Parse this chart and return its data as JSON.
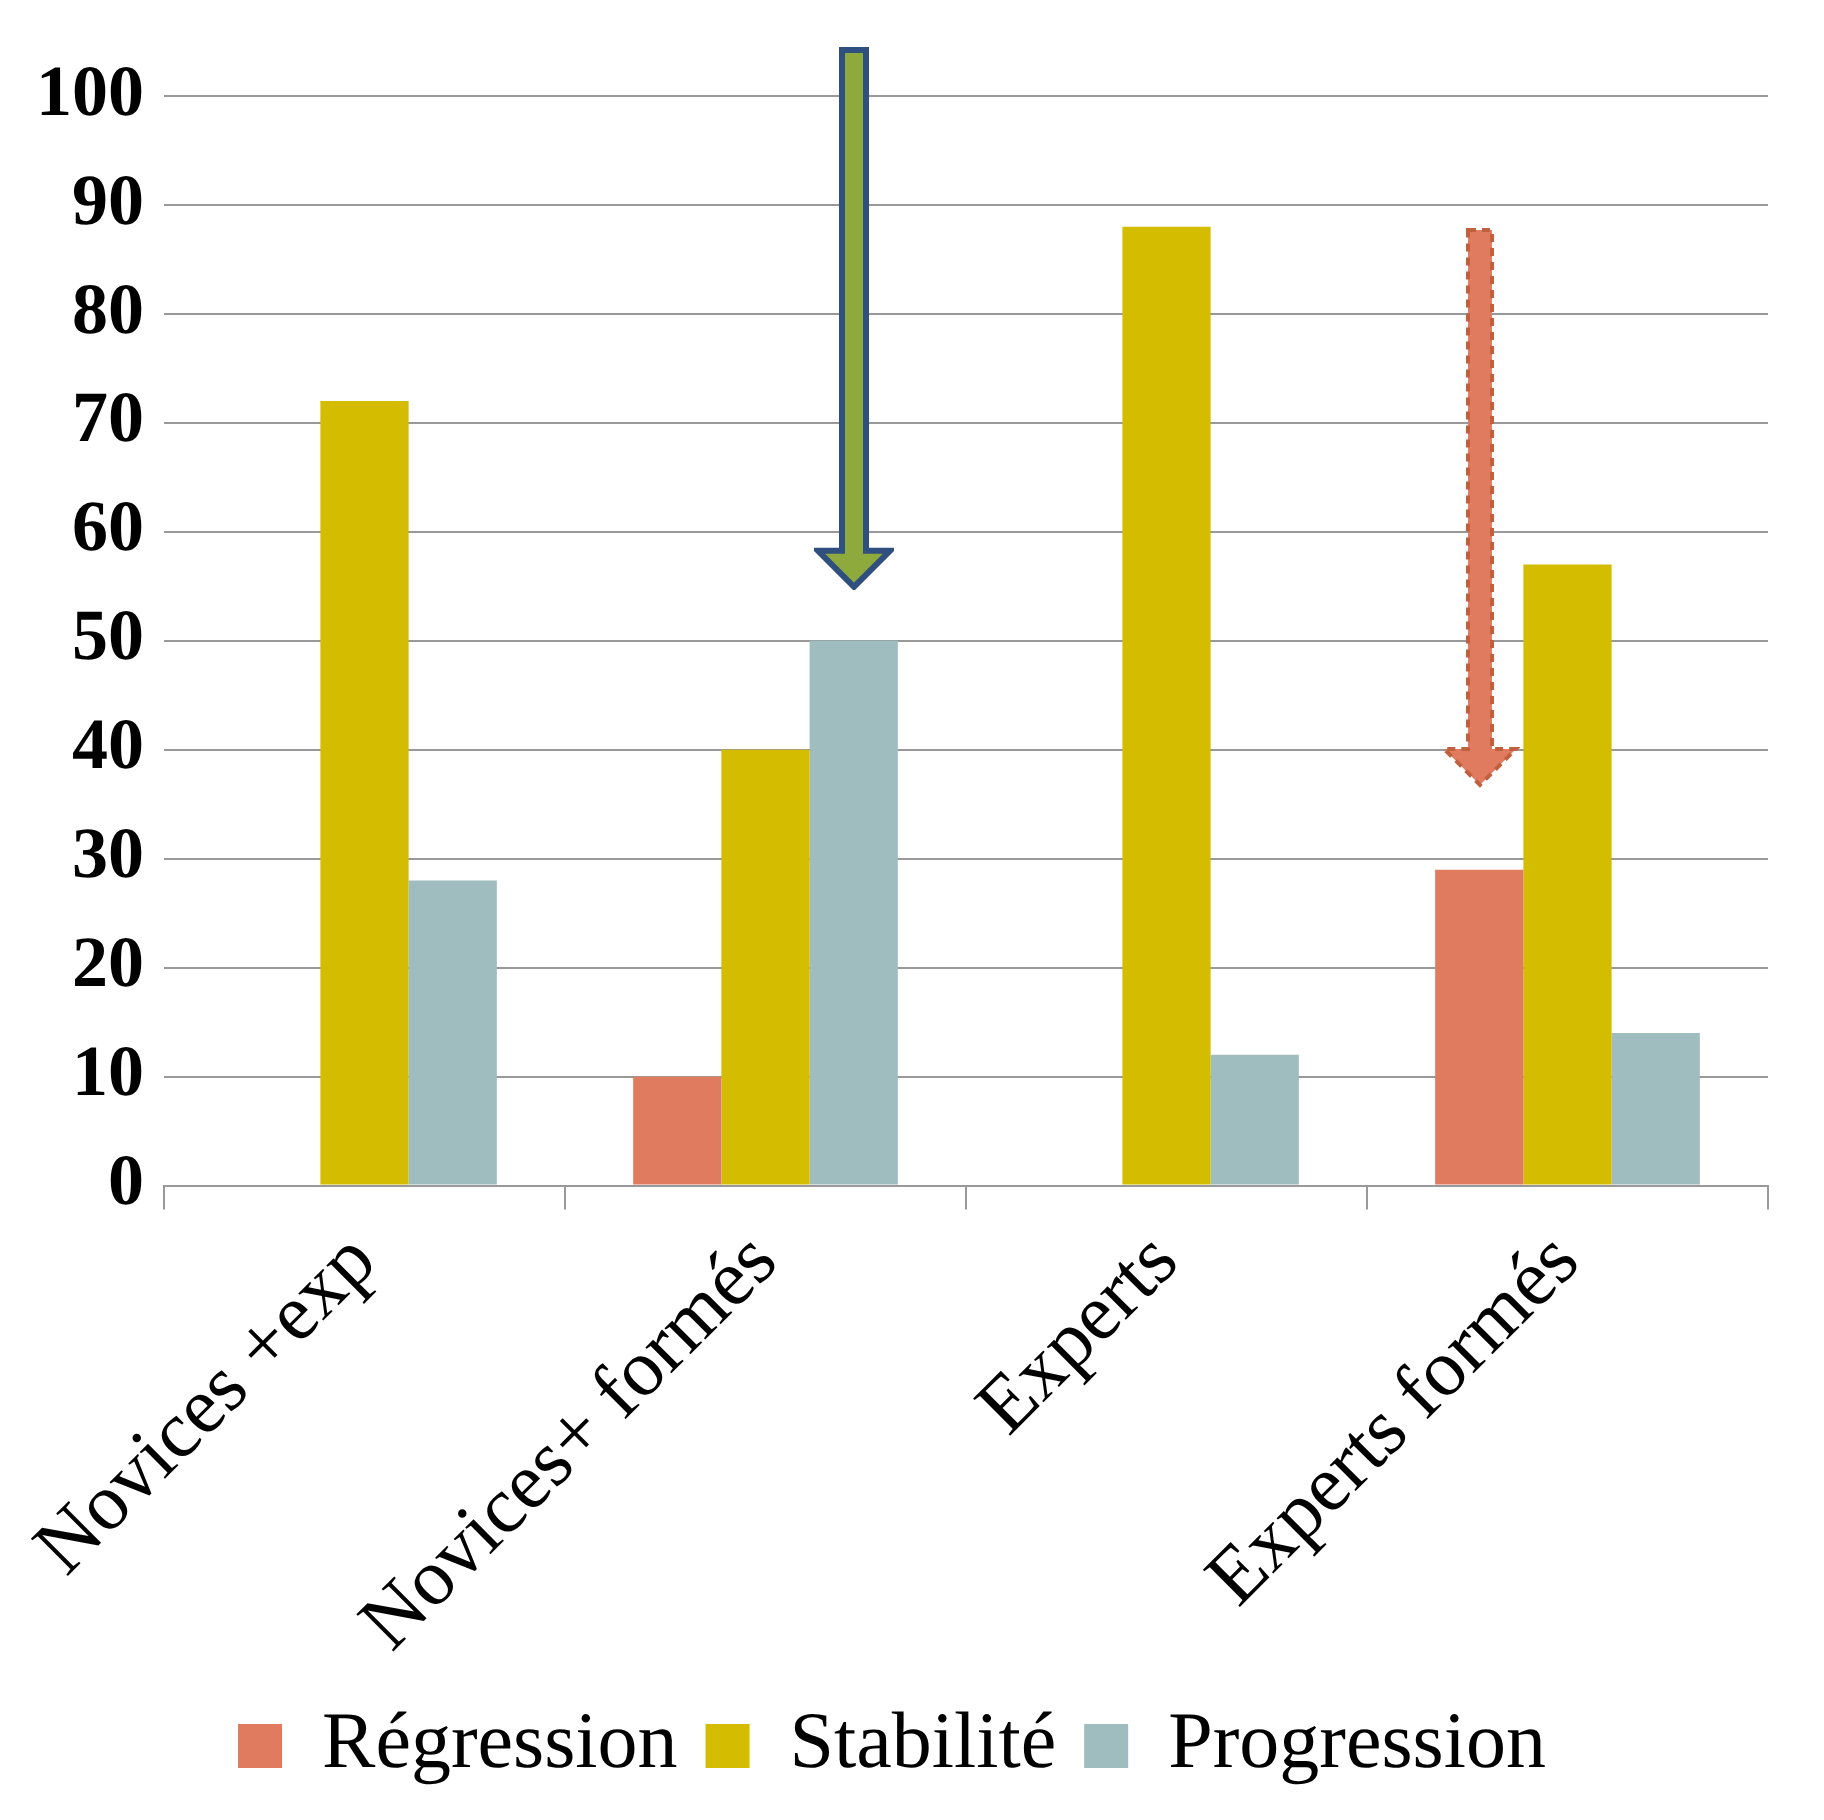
{
  "chart_data": {
    "type": "bar",
    "categories": [
      "Novices +exp",
      "Novices+ formés",
      "Experts",
      "Experts formés"
    ],
    "series": [
      {
        "name": "Régression",
        "color": "#e07b5f",
        "values": [
          0,
          10,
          0,
          29
        ]
      },
      {
        "name": "Stabilité",
        "color": "#d4bc00",
        "values": [
          72,
          40,
          88,
          57
        ]
      },
      {
        "name": "Progression",
        "color": "#9fbcbf",
        "values": [
          28,
          50,
          12,
          14
        ]
      }
    ],
    "ylim": [
      0,
      100
    ],
    "yticks": [
      0,
      10,
      20,
      30,
      40,
      50,
      60,
      70,
      80,
      90,
      100
    ],
    "grid": "y",
    "legend": "bottom"
  }
}
